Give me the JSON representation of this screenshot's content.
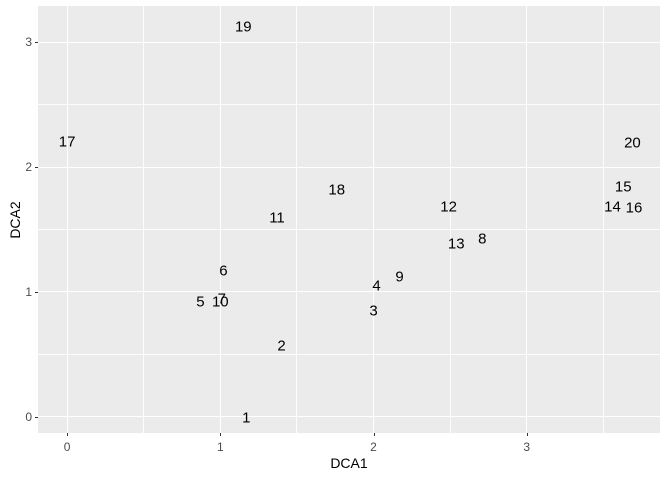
{
  "figure": {
    "background": "#FFFFFF"
  },
  "chart_data": {
    "type": "scatter",
    "title": "",
    "xlabel": "DCA1",
    "ylabel": "DCA2",
    "xlim": [
      -0.19,
      3.87
    ],
    "ylim": [
      -0.13,
      3.29
    ],
    "x_major_ticks": [
      0,
      1,
      2,
      3
    ],
    "y_major_ticks": [
      0,
      1,
      2,
      3
    ],
    "x_minor_ticks": [
      0.5,
      1.5,
      2.5,
      3.5
    ],
    "y_minor_ticks": [
      0.5,
      1.5,
      2.5
    ],
    "grid": "white major and minor gridlines on grey panel",
    "legend_position": "none",
    "marker": "text-label",
    "style": {
      "panel_background": "#EBEBEB",
      "grid_color": "#FFFFFF",
      "tick_label_color": "#4D4D4D",
      "tick_mark_color": "#333333",
      "axis_title_color": "#000000",
      "point_label_color": "#000000"
    },
    "points": [
      {
        "label": "1",
        "x": 1.17,
        "y": -0.01
      },
      {
        "label": "2",
        "x": 1.4,
        "y": 0.57
      },
      {
        "label": "3",
        "x": 2.0,
        "y": 0.85
      },
      {
        "label": "4",
        "x": 2.02,
        "y": 1.05
      },
      {
        "label": "5",
        "x": 0.87,
        "y": 0.92
      },
      {
        "label": "6",
        "x": 1.02,
        "y": 1.17
      },
      {
        "label": "7",
        "x": 1.01,
        "y": 0.94
      },
      {
        "label": "8",
        "x": 2.71,
        "y": 1.42
      },
      {
        "label": "9",
        "x": 2.17,
        "y": 1.12
      },
      {
        "label": "10",
        "x": 1.0,
        "y": 0.92
      },
      {
        "label": "11",
        "x": 1.37,
        "y": 1.59
      },
      {
        "label": "12",
        "x": 2.49,
        "y": 1.68
      },
      {
        "label": "13",
        "x": 2.54,
        "y": 1.38
      },
      {
        "label": "14",
        "x": 3.56,
        "y": 1.68
      },
      {
        "label": "15",
        "x": 3.63,
        "y": 1.84
      },
      {
        "label": "16",
        "x": 3.7,
        "y": 1.67
      },
      {
        "label": "17",
        "x": 0.0,
        "y": 2.2
      },
      {
        "label": "18",
        "x": 1.76,
        "y": 1.82
      },
      {
        "label": "19",
        "x": 1.15,
        "y": 3.12
      },
      {
        "label": "20",
        "x": 3.69,
        "y": 2.19
      }
    ]
  }
}
